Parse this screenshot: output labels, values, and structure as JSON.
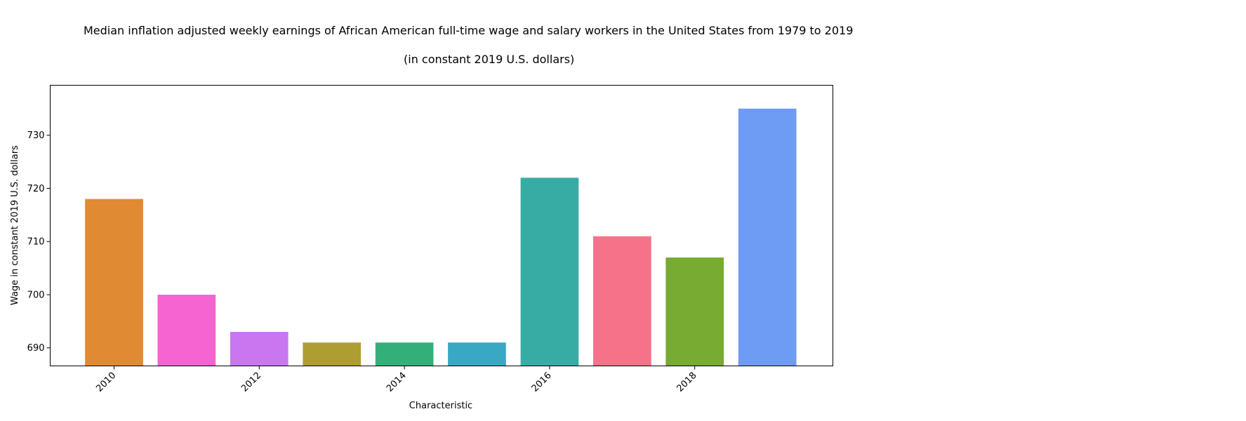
{
  "chart_data": {
    "type": "bar",
    "title": "Median inflation adjusted weekly earnings of African American full-time wage and salary workers in the United States from 1979 to 2019",
    "subtitle": "(in constant 2019 U.S. dollars)",
    "xlabel": "Characteristic",
    "ylabel": "Wage in constant 2019 U.S. dollars",
    "categories": [
      "2010",
      "2011",
      "2012",
      "2013",
      "2014",
      "2015",
      "2016",
      "2017",
      "2018",
      "2019"
    ],
    "values": [
      718,
      700,
      693,
      691,
      691,
      691,
      722,
      711,
      707,
      735
    ],
    "colors": [
      "#e08a33",
      "#f564d0",
      "#c977f0",
      "#ae9d31",
      "#33b07a",
      "#38a8c5",
      "#36ada4",
      "#f67288",
      "#77ab31",
      "#6e9bf4"
    ],
    "x_tick_labels": [
      "2010",
      "2012",
      "2014",
      "2016",
      "2018"
    ],
    "y_ticks": [
      690,
      700,
      710,
      720,
      730
    ],
    "ylim": [
      686.6,
      739.4
    ],
    "grid": false,
    "legend": "none"
  }
}
